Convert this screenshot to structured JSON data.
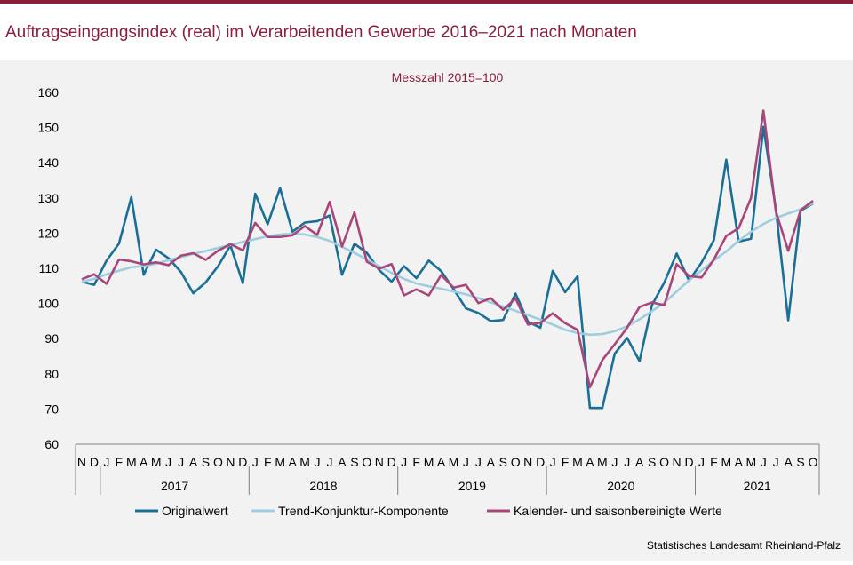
{
  "header": {
    "title": "Auftragseingangsindex (real) im Verarbeitenden Gewerbe 2016–2021 nach Monaten"
  },
  "source": "Statistisches Landesamt Rheinland-Pfalz",
  "colors": {
    "accent": "#8a1f3c",
    "original": "#1a6f96",
    "trend": "#9fcde0",
    "adjusted": "#a8467a"
  },
  "chart_data": {
    "type": "line",
    "subtitle": "Messzahl 2015=100",
    "ylim": [
      60,
      160
    ],
    "yticks": [
      60,
      70,
      80,
      90,
      100,
      110,
      120,
      130,
      140,
      150,
      160
    ],
    "grid": false,
    "legend_position": "bottom",
    "x": [
      "N",
      "D",
      "J",
      "F",
      "M",
      "A",
      "M",
      "J",
      "J",
      "A",
      "S",
      "O",
      "N",
      "D",
      "J",
      "F",
      "M",
      "A",
      "M",
      "J",
      "J",
      "A",
      "S",
      "O",
      "N",
      "D",
      "J",
      "F",
      "M",
      "A",
      "M",
      "J",
      "J",
      "A",
      "S",
      "O",
      "N",
      "D",
      "J",
      "F",
      "M",
      "A",
      "M",
      "J",
      "J",
      "A",
      "S",
      "O",
      "N",
      "D",
      "J",
      "F",
      "M",
      "A",
      "M",
      "J",
      "J",
      "A",
      "S",
      "O"
    ],
    "years": [
      {
        "label": "2017",
        "start": 2,
        "end": 13
      },
      {
        "label": "2018",
        "start": 14,
        "end": 25
      },
      {
        "label": "2019",
        "start": 26,
        "end": 37
      },
      {
        "label": "2020",
        "start": 38,
        "end": 49
      },
      {
        "label": "2021",
        "start": 50,
        "end": 59
      }
    ],
    "series": [
      {
        "name": "Originalwert",
        "color": "#1a6f96",
        "values": [
          106.2,
          105.3,
          112.2,
          117.0,
          130.2,
          108.2,
          115.3,
          112.9,
          109.0,
          102.9,
          106.0,
          110.6,
          116.5,
          105.8,
          131.2,
          122.5,
          132.8,
          120.4,
          123.0,
          123.4,
          125.0,
          108.2,
          117.0,
          114.4,
          109.5,
          106.2,
          110.6,
          107.2,
          112.2,
          109.2,
          104.1,
          98.6,
          97.3,
          95.0,
          95.3,
          102.8,
          94.8,
          93.1,
          109.3,
          103.2,
          107.7,
          70.3,
          70.3,
          85.7,
          90.2,
          83.6,
          99.5,
          106.0,
          114.2,
          106.5,
          111.6,
          118.0,
          140.9,
          117.6,
          118.4,
          150.2,
          126.9,
          95.2,
          126.4,
          128.4
        ]
      },
      {
        "name": "Trend-Konjunktur-Komponente",
        "color": "#9fcde0",
        "values": [
          106.2,
          107.0,
          108.3,
          109.3,
          110.3,
          110.7,
          111.3,
          112.3,
          113.2,
          114.1,
          114.9,
          115.8,
          116.6,
          117.5,
          118.3,
          119.1,
          119.6,
          119.8,
          119.6,
          118.9,
          117.8,
          116.1,
          114.4,
          112.5,
          110.6,
          108.7,
          107.0,
          105.7,
          104.9,
          104.2,
          103.4,
          102.6,
          101.5,
          100.3,
          99.1,
          97.9,
          96.7,
          95.4,
          94.0,
          92.5,
          91.6,
          91.1,
          91.3,
          92.1,
          93.5,
          95.5,
          97.8,
          100.2,
          103.4,
          106.6,
          109.4,
          112.2,
          114.8,
          117.8,
          120.4,
          122.6,
          124.3,
          125.6,
          126.8,
          128.5
        ]
      },
      {
        "name": "Kalender- und saisonbereinigte Werte",
        "color": "#a8467a",
        "values": [
          106.9,
          108.3,
          105.6,
          112.5,
          112.0,
          111.1,
          111.7,
          110.9,
          113.6,
          114.3,
          112.4,
          115.0,
          116.9,
          115.1,
          122.9,
          118.9,
          118.9,
          119.4,
          122.0,
          119.5,
          128.9,
          116.2,
          125.9,
          111.9,
          109.9,
          111.2,
          102.3,
          104.0,
          102.3,
          108.1,
          104.5,
          105.3,
          100.1,
          101.5,
          98.2,
          101.4,
          94.0,
          94.5,
          97.2,
          94.4,
          92.5,
          76.2,
          83.9,
          88.4,
          93.1,
          99.0,
          100.3,
          99.5,
          111.2,
          107.8,
          107.4,
          112.5,
          119.2,
          121.4,
          130.0,
          154.8,
          126.2,
          115.0,
          126.5,
          129.2
        ]
      }
    ]
  }
}
